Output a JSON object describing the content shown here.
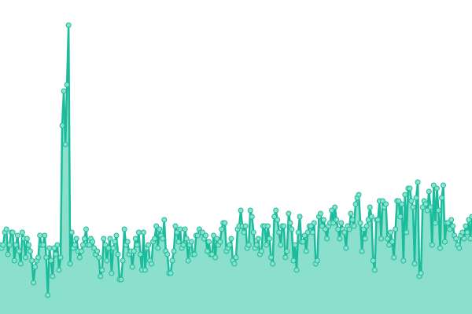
{
  "chart_data": {
    "type": "area",
    "title": "",
    "xlabel": "",
    "ylabel": "",
    "ylim": [
      0,
      100
    ],
    "grid": false,
    "legend": "none",
    "series": [
      {
        "color": "#1abc9c",
        "fill_color": "#8ae0cc",
        "values": [
          22,
          21,
          22,
          26,
          27,
          19,
          22,
          26,
          26,
          17,
          22,
          25,
          20,
          16,
          26,
          24,
          18,
          24,
          22,
          20,
          17,
          10,
          15,
          17,
          18,
          25,
          22,
          22,
          25,
          18,
          6,
          21,
          17,
          12,
          21,
          19,
          22,
          14,
          18,
          60,
          71,
          54,
          73,
          92,
          16,
          26,
          21,
          22,
          24,
          20,
          18,
          20,
          22,
          24,
          27,
          22,
          22,
          24,
          23,
          21,
          19,
          20,
          18,
          12,
          14,
          24,
          22,
          17,
          21,
          24,
          13,
          21,
          23,
          25,
          19,
          11,
          11,
          17,
          27,
          22,
          23,
          19,
          20,
          15,
          20,
          24,
          22,
          26,
          19,
          14,
          26,
          14,
          21,
          22,
          17,
          16,
          23,
          24,
          28,
          21,
          27,
          25,
          24,
          30,
          20,
          19,
          13,
          13,
          17,
          20,
          28,
          26,
          23,
          27,
          21,
          22,
          27,
          24,
          17,
          22,
          23,
          19,
          19,
          25,
          25,
          27,
          26,
          26,
          24,
          25,
          20,
          23,
          19,
          19,
          25,
          18,
          24,
          22,
          23,
          27,
          29,
          29,
          20,
          21,
          22,
          24,
          17,
          16,
          18,
          27,
          28,
          33,
          28,
          26,
          28,
          21,
          22,
          33,
          31,
          26,
          21,
          22,
          24,
          19,
          20,
          28,
          28,
          22,
          28,
          24,
          18,
          16,
          31,
          33,
          30,
          26,
          22,
          28,
          28,
          18,
          20,
          32,
          29,
          27,
          17,
          22,
          14,
          26,
          31,
          23,
          23,
          25,
          20,
          26,
          28,
          28,
          26,
          29,
          16,
          17,
          31,
          32,
          28,
          30,
          27,
          24,
          28,
          29,
          33,
          29,
          34,
          30,
          27,
          24,
          29,
          27,
          26,
          21,
          28,
          27,
          32,
          30,
          28,
          35,
          37,
          38,
          29,
          20,
          27,
          24,
          28,
          30,
          34,
          31,
          17,
          14,
          30,
          30,
          36,
          24,
          36,
          34,
          35,
          24,
          22,
          26,
          23,
          18,
          27,
          36,
          36,
          31,
          35,
          17,
          38,
          26,
          40,
          40,
          36,
          34,
          16,
          37,
          42,
          12,
          13,
          34,
          36,
          35,
          33,
          39,
          34,
          22,
          41,
          29,
          40,
          33,
          21,
          37,
          41,
          23,
          29,
          29,
          27,
          30,
          28,
          25,
          24,
          22,
          21,
          25,
          26,
          24,
          28,
          26,
          30,
          24,
          31
        ]
      }
    ]
  }
}
